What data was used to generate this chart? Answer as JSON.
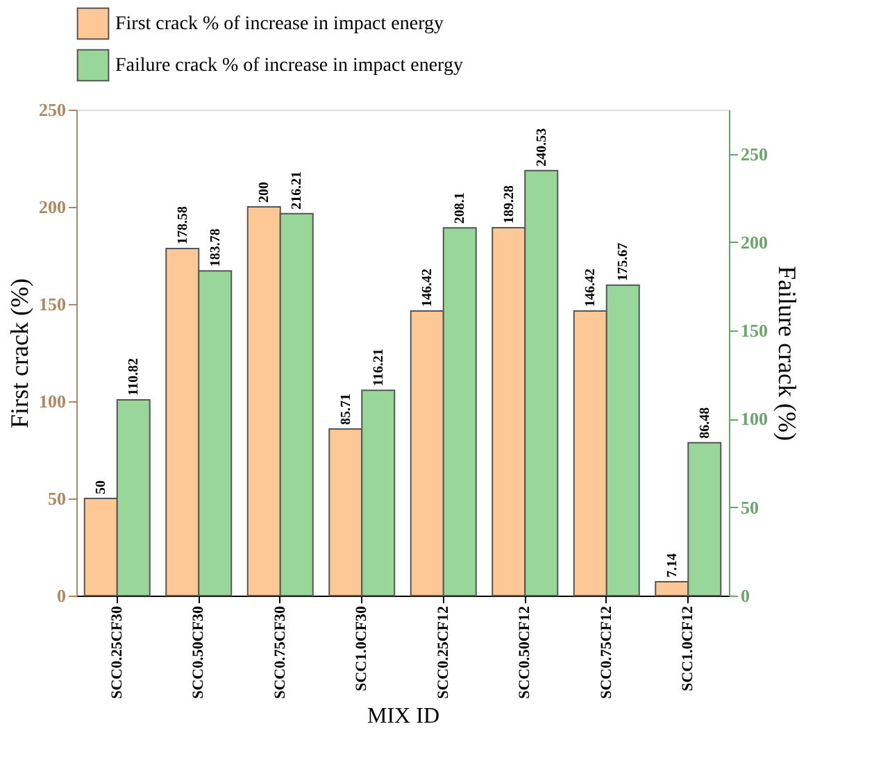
{
  "chart_data": {
    "type": "bar",
    "xlabel": "MIX ID",
    "ylabel": "First crack (%)",
    "y2label": "Failure crack (%)",
    "categories": [
      "SCC0.25CF30",
      "SCC0.50CF30",
      "SCC0.75CF30",
      "SCC1.0CF30",
      "SCC0.25CF12",
      "SCC0.50CF12",
      "SCC0.75CF12",
      "SCC1.0CF12"
    ],
    "series": [
      {
        "name": "First crack % of increase in impact energy",
        "color": "#fdc896",
        "values": [
          50,
          178.58,
          200,
          85.71,
          146.42,
          189.28,
          146.42,
          7.14
        ]
      },
      {
        "name": "Failure crack % of increase in impact energy",
        "color": "#98d69a",
        "axis": "y2",
        "values": [
          110.82,
          183.78,
          216.21,
          116.21,
          208.1,
          240.53,
          175.67,
          86.48
        ]
      }
    ],
    "ylim": [
      0,
      250
    ],
    "yticks": [
      0,
      50,
      100,
      150,
      200,
      250
    ],
    "y2lim": [
      0,
      275
    ],
    "y2ticks": [
      0,
      50,
      100,
      150,
      200,
      250
    ],
    "data_labels": true,
    "legend": "top",
    "grid": false
  }
}
